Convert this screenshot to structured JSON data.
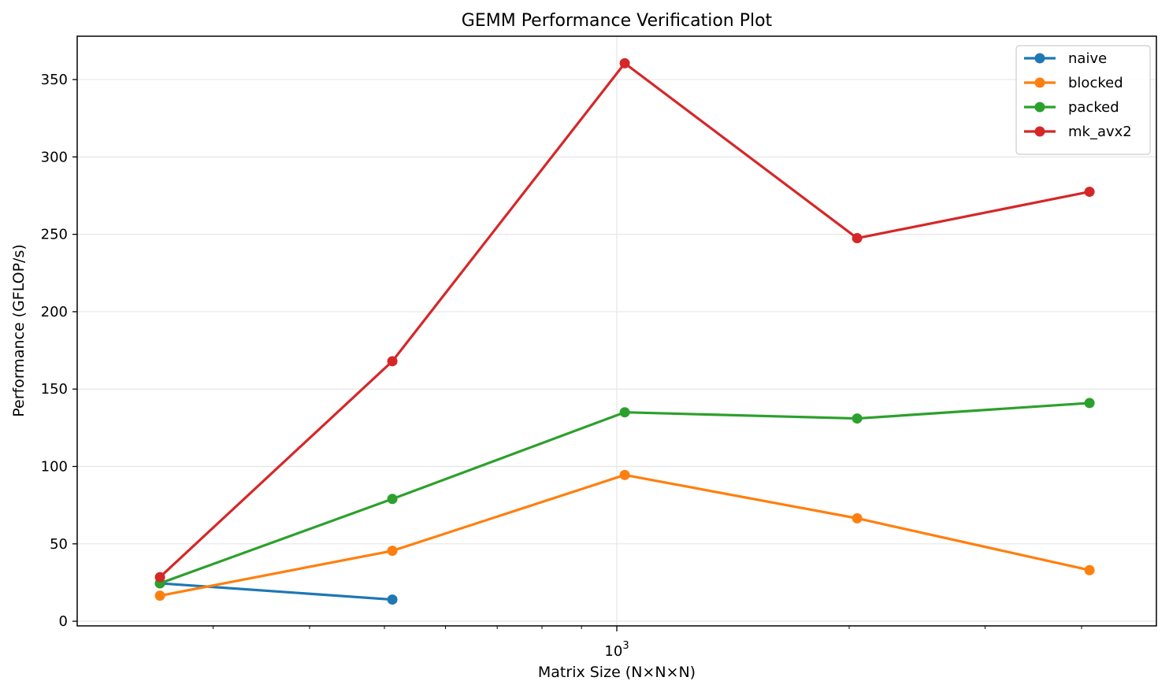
{
  "chart_data": {
    "type": "line",
    "title": "GEMM Performance Verification Plot",
    "xlabel": "Matrix Size (N×N×N)",
    "ylabel": "Performance (GFLOP/s)",
    "x_scale": "log",
    "x": [
      256,
      512,
      1024,
      2048,
      4096
    ],
    "xlim": [
      200,
      5000
    ],
    "ylim": [
      -3,
      378
    ],
    "yticks": [
      0,
      50,
      100,
      150,
      200,
      250,
      300,
      350
    ],
    "xtick_labels": [
      {
        "value": 1000,
        "base": "10",
        "exponent": "3"
      }
    ],
    "grid": true,
    "legend_position": "top-right",
    "series": [
      {
        "name": "naive",
        "color": "#1f77b4",
        "values": [
          24.5,
          14,
          null,
          null,
          null
        ]
      },
      {
        "name": "blocked",
        "color": "#ff7f0e",
        "values": [
          16.5,
          45.5,
          94.5,
          66.5,
          33
        ]
      },
      {
        "name": "packed",
        "color": "#2ca02c",
        "values": [
          24.5,
          79,
          135,
          131,
          141
        ]
      },
      {
        "name": "mk_avx2",
        "color": "#d62728",
        "values": [
          28.5,
          168,
          360.5,
          247.5,
          277.5
        ]
      }
    ]
  }
}
